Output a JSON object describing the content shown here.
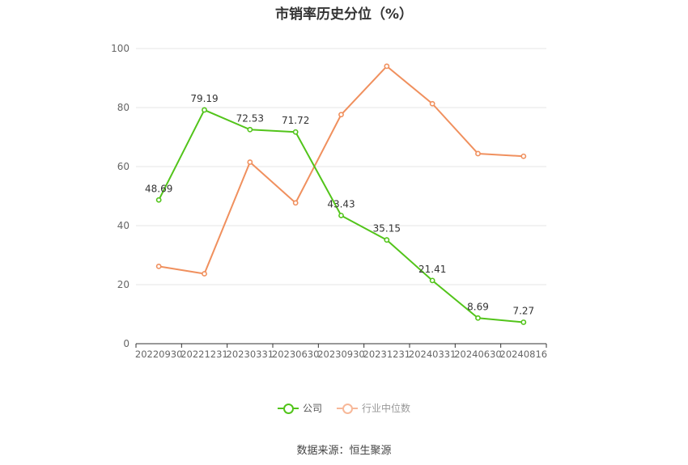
{
  "chart_data": {
    "type": "line",
    "title": "市销率历史分位（%）",
    "categories": [
      "20220930",
      "20221231",
      "20230331",
      "20230630",
      "20230930",
      "20231231",
      "20240331",
      "20240630",
      "20240816"
    ],
    "ylim": [
      0,
      100
    ],
    "yticks": [
      0,
      20,
      40,
      60,
      80,
      100
    ],
    "grid": true,
    "legend_position": "bottom-center",
    "series": [
      {
        "name": "公司",
        "color": "#52c41a",
        "values": [
          48.69,
          79.19,
          72.53,
          71.72,
          43.43,
          35.15,
          21.41,
          8.69,
          7.27
        ],
        "labels": [
          "48.69",
          "79.19",
          "72.53",
          "71.72",
          "43.43",
          "35.15",
          "21.41",
          "8.69",
          "7.27"
        ]
      },
      {
        "name": "行业中位数",
        "color": "#f0905e",
        "values": [
          26.2,
          23.7,
          61.5,
          47.7,
          77.6,
          94.0,
          81.3,
          64.4,
          63.5
        ]
      }
    ]
  },
  "legend": {
    "company_label": "公司",
    "industry_label": "行业中位数",
    "company_color": "#52c41a",
    "industry_color": "#f0905e"
  },
  "footer": {
    "source": "数据来源：恒生聚源"
  }
}
